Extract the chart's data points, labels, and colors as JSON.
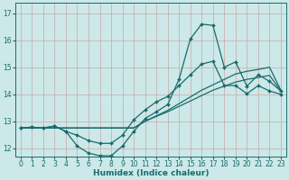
{
  "xlabel": "Humidex (Indice chaleur)",
  "bg_color": "#cce8e8",
  "line_color": "#1a6b6b",
  "grid_color": "#c8a8a8",
  "xlim": [
    -0.5,
    23.5
  ],
  "ylim": [
    11.7,
    17.4
  ],
  "xticks": [
    0,
    1,
    2,
    3,
    4,
    5,
    6,
    7,
    8,
    9,
    10,
    11,
    12,
    13,
    14,
    15,
    16,
    17,
    18,
    19,
    20,
    21,
    22,
    23
  ],
  "yticks": [
    12,
    13,
    14,
    15,
    16,
    17
  ],
  "line1_x": [
    0,
    1,
    2,
    3,
    4,
    5,
    6,
    7,
    8,
    9,
    10,
    11,
    12,
    13,
    14,
    15,
    16,
    17,
    18,
    19,
    20,
    21,
    22,
    23
  ],
  "line1_y": [
    12.75,
    12.78,
    12.75,
    12.82,
    12.62,
    12.08,
    11.82,
    11.72,
    11.72,
    12.08,
    12.62,
    13.1,
    13.35,
    13.62,
    14.55,
    16.05,
    16.6,
    16.55,
    15.0,
    15.2,
    14.3,
    14.72,
    14.48,
    14.12
  ],
  "line2_x": [
    0,
    1,
    2,
    3,
    4,
    5,
    6,
    7,
    8,
    9,
    10,
    11,
    12,
    13,
    14,
    15,
    16,
    17,
    18,
    19,
    20,
    21,
    22,
    23
  ],
  "line2_y": [
    12.75,
    12.78,
    12.75,
    12.82,
    12.62,
    12.48,
    12.28,
    12.18,
    12.18,
    12.48,
    13.05,
    13.42,
    13.72,
    13.92,
    14.32,
    14.72,
    15.12,
    15.22,
    14.32,
    14.32,
    14.02,
    14.32,
    14.12,
    14.0
  ],
  "line3_x": [
    0,
    10,
    11,
    12,
    13,
    14,
    15,
    16,
    17,
    18,
    19,
    20,
    21,
    22,
    23
  ],
  "line3_y": [
    12.75,
    12.75,
    13.0,
    13.2,
    13.4,
    13.65,
    13.9,
    14.15,
    14.35,
    14.55,
    14.75,
    14.85,
    14.92,
    15.0,
    14.15
  ],
  "line4_x": [
    0,
    10,
    11,
    12,
    13,
    14,
    15,
    16,
    17,
    18,
    19,
    20,
    21,
    22,
    23
  ],
  "line4_y": [
    12.75,
    12.75,
    13.0,
    13.18,
    13.35,
    13.55,
    13.75,
    13.95,
    14.15,
    14.3,
    14.45,
    14.55,
    14.62,
    14.7,
    14.12
  ],
  "marker_size": 2.0,
  "line_width": 0.9,
  "font_size_tick": 5.5,
  "font_size_xlabel": 6.5
}
